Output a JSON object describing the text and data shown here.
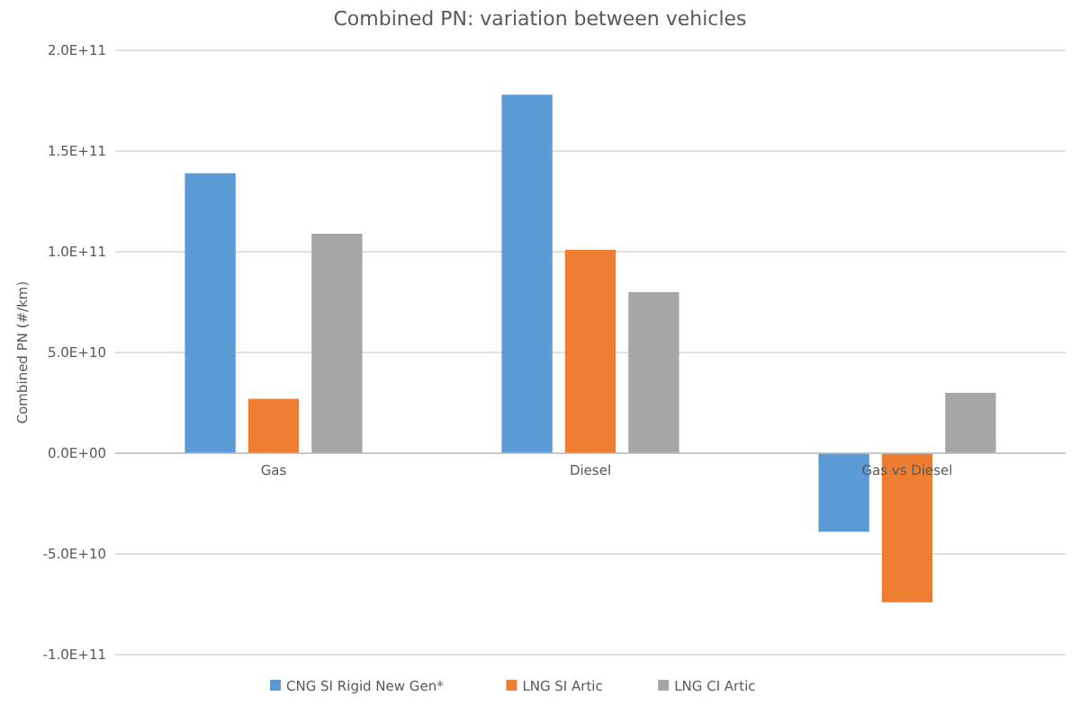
{
  "chart_data": {
    "type": "bar",
    "title": "Combined PN: variation between vehicles",
    "ylabel": "Combined PN (#/km)",
    "categories": [
      "Gas",
      "Diesel",
      "Gas vs Diesel"
    ],
    "series": [
      {
        "name": "CNG SI Rigid New Gen*",
        "color": "#5b9bd5",
        "values": [
          139000000000.0,
          178000000000.0,
          -39000000000.0
        ]
      },
      {
        "name": "LNG SI Artic",
        "color": "#ed7d31",
        "values": [
          27000000000.0,
          101000000000.0,
          -74000000000.0
        ]
      },
      {
        "name": "LNG CI Artic",
        "color": "#a5a5a5",
        "values": [
          109000000000.0,
          80000000000.0,
          30000000000.0
        ]
      }
    ],
    "ylim": [
      -100000000000.0,
      200000000000.0
    ],
    "yticks": [
      {
        "value": -100000000000.0,
        "label": "-1.0E+11"
      },
      {
        "value": -50000000000.0,
        "label": "-5.0E+10"
      },
      {
        "value": 0,
        "label": "0.0E+00"
      },
      {
        "value": 50000000000.0,
        "label": "5.0E+10"
      },
      {
        "value": 100000000000.0,
        "label": "1.0E+11"
      },
      {
        "value": 150000000000.0,
        "label": "1.5E+11"
      },
      {
        "value": 200000000000.0,
        "label": "2.0E+11"
      }
    ],
    "grid": "y",
    "legend": "bottom"
  }
}
